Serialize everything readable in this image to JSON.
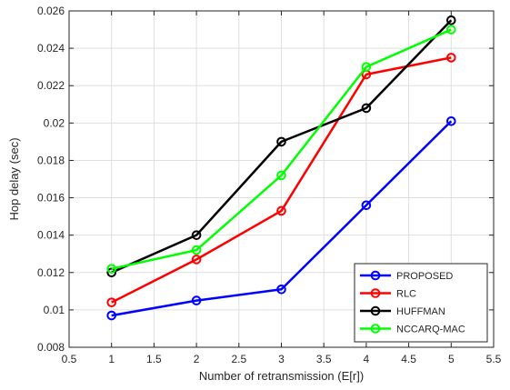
{
  "chart_data": {
    "type": "line",
    "title": "",
    "xlabel": "Number of retransmission (E[r])",
    "ylabel": "Hop delay (sec)",
    "xlim": [
      0.5,
      5.5
    ],
    "ylim": [
      0.008,
      0.026
    ],
    "xticks": [
      0.5,
      1,
      1.5,
      2,
      2.5,
      3,
      3.5,
      4,
      4.5,
      5,
      5.5
    ],
    "xtick_labels": [
      "0.5",
      "1",
      "1.5",
      "2",
      "2.5",
      "3",
      "3.5",
      "4",
      "4.5",
      "5",
      "5.5"
    ],
    "yticks": [
      0.008,
      0.01,
      0.012,
      0.014,
      0.016,
      0.018,
      0.02,
      0.022,
      0.024,
      0.026
    ],
    "ytick_labels": [
      "0.008",
      "0.01",
      "0.012",
      "0.014",
      "0.016",
      "0.018",
      "0.02",
      "0.022",
      "0.024",
      "0.026"
    ],
    "grid": true,
    "legend_position": "bottom-right",
    "x": [
      1,
      2,
      3,
      4,
      5
    ],
    "series": [
      {
        "name": "PROPOSED",
        "color": "#0000ff",
        "values": [
          0.0097,
          0.0105,
          0.0111,
          0.0156,
          0.0201
        ]
      },
      {
        "name": "RLC",
        "color": "#ff0000",
        "values": [
          0.0104,
          0.0127,
          0.0153,
          0.0226,
          0.0235
        ]
      },
      {
        "name": "HUFFMAN",
        "color": "#000000",
        "values": [
          0.012,
          0.014,
          0.019,
          0.0208,
          0.0255
        ]
      },
      {
        "name": "NCCARQ-MAC",
        "color": "#00ff00",
        "values": [
          0.0122,
          0.0132,
          0.0172,
          0.023,
          0.025
        ]
      }
    ]
  }
}
